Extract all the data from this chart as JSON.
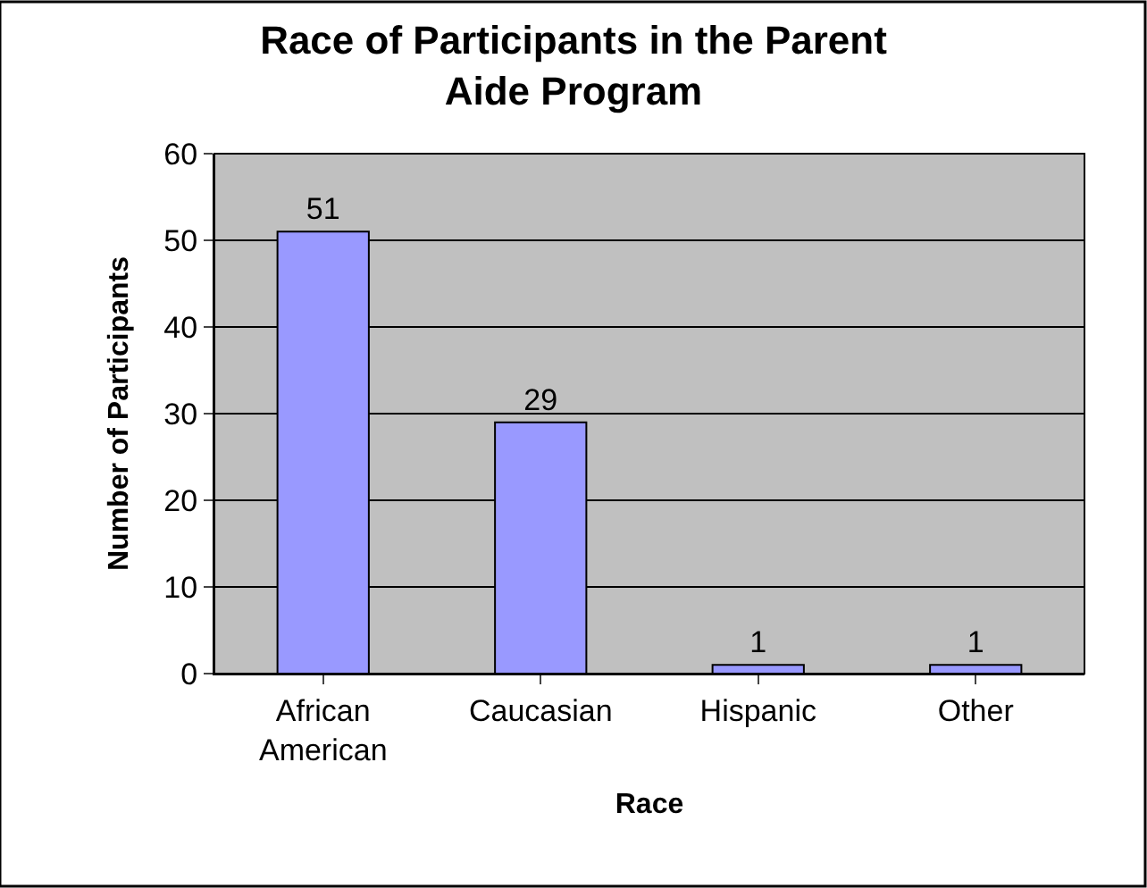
{
  "chart_data": {
    "type": "bar",
    "title": "Race of Participants in the Parent Aide Program",
    "xlabel": "Race",
    "ylabel": "Number of Participants",
    "categories": [
      "African American",
      "Caucasian",
      "Hispanic",
      "Other"
    ],
    "values": [
      51,
      29,
      1,
      1
    ],
    "color": "#9999ff",
    "ylim": [
      0,
      60
    ],
    "yticks": [
      0,
      10,
      20,
      30,
      40,
      50,
      60
    ],
    "grid": "y",
    "data_labels": true,
    "legend": false
  }
}
